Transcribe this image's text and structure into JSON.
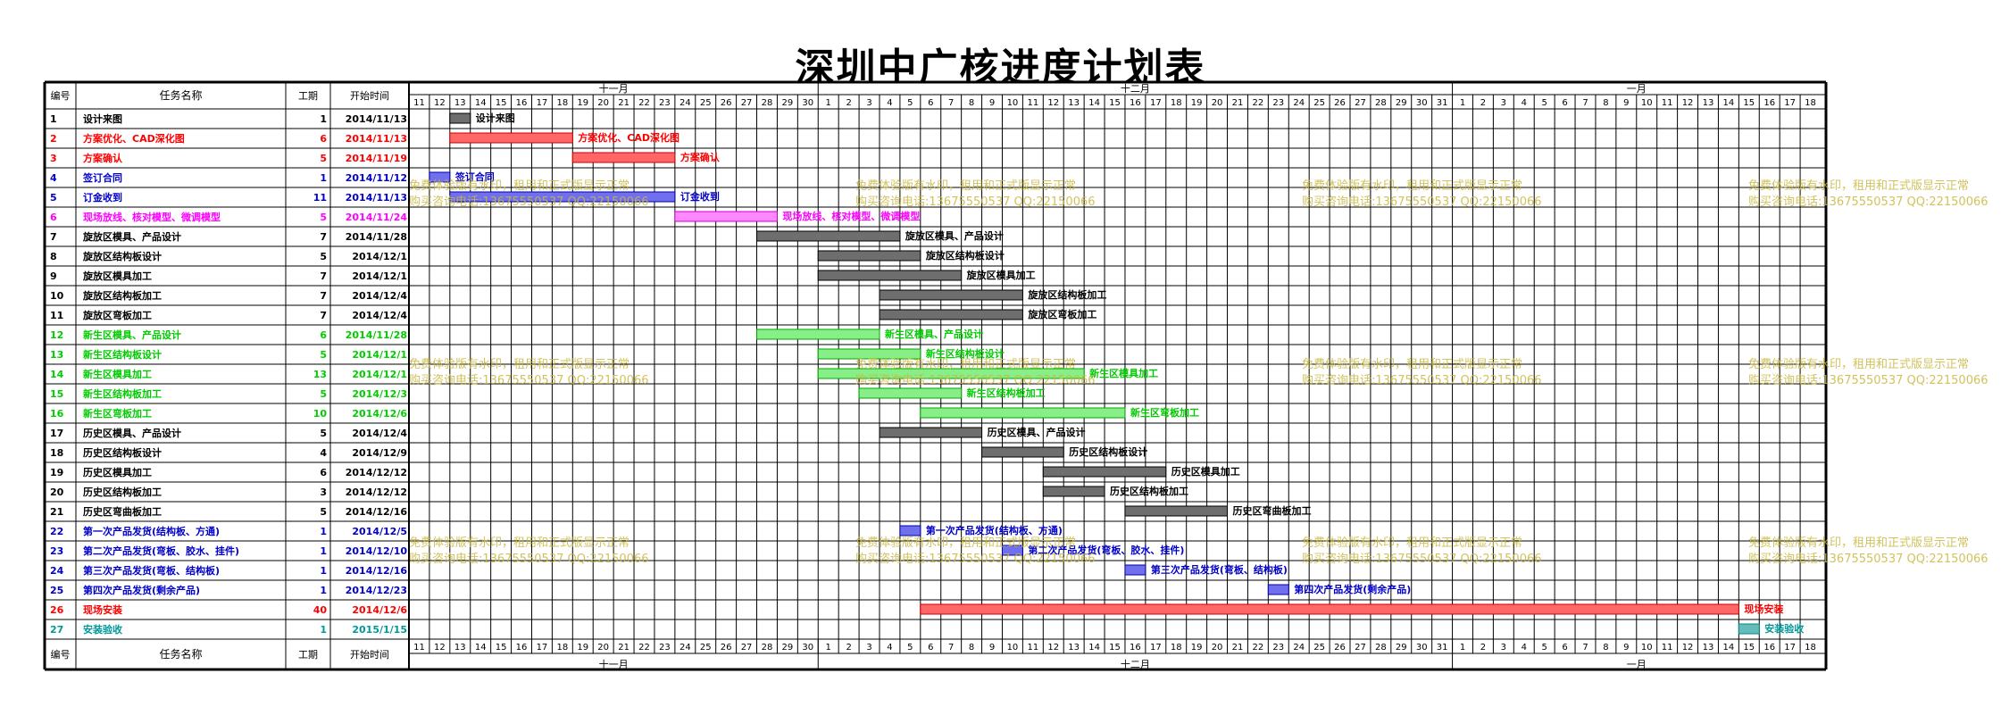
{
  "page": {
    "title": "深圳中广核进度计划表"
  },
  "table": {
    "headers": {
      "no": "编号",
      "name": "任务名称",
      "duration": "工期",
      "start": "开始时间"
    }
  },
  "timeline": {
    "months": [
      "十一月",
      "十二月",
      "一月"
    ],
    "days": [
      11,
      12,
      13,
      14,
      15,
      16,
      17,
      18,
      19,
      20,
      21,
      22,
      23,
      24,
      25,
      26,
      27,
      28,
      29,
      30,
      1,
      2,
      3,
      4,
      5,
      6,
      7,
      8,
      9,
      10,
      11,
      12,
      13,
      14,
      15,
      16,
      17,
      18,
      19,
      20,
      21,
      22,
      23,
      24,
      25,
      26,
      27,
      28,
      29,
      30,
      31,
      1,
      2,
      3,
      4,
      5,
      6,
      7,
      8,
      9,
      10,
      11,
      12,
      13,
      14,
      15,
      16,
      17,
      18
    ]
  },
  "colors": {
    "black": "#000000",
    "red": "#ff0000",
    "blue": "#0000cc",
    "magenta": "#ff00ff",
    "green": "#00cc00",
    "teal": "#009999"
  },
  "watermark": {
    "line1": "免费体验版有水印，租用和正式版显示正常",
    "line2": "购买咨询电话:13675550537 QQ:22150066"
  },
  "chart_data": {
    "type": "gantt",
    "title": "深圳中广核进度计划表",
    "x_range": [
      "2014-11-11",
      "2015-01-18"
    ],
    "tasks": [
      {
        "no": "1",
        "name": "设计来图",
        "duration": "1",
        "start": "2014/11/13",
        "start_date": "2014-11-13",
        "color": "black"
      },
      {
        "no": "2",
        "name": "方案优化、CAD深化图",
        "duration": "6",
        "start": "2014/11/13",
        "start_date": "2014-11-13",
        "color": "red"
      },
      {
        "no": "3",
        "name": "方案确认",
        "duration": "5",
        "start": "2014/11/19",
        "start_date": "2014-11-19",
        "color": "red"
      },
      {
        "no": "4",
        "name": "签订合同",
        "duration": "1",
        "start": "2014/11/12",
        "start_date": "2014-11-12",
        "color": "blue"
      },
      {
        "no": "5",
        "name": "订金收到",
        "duration": "11",
        "start": "2014/11/13",
        "start_date": "2014-11-13",
        "color": "blue"
      },
      {
        "no": "6",
        "name": "现场放线、核对模型、微调模型",
        "duration": "5",
        "start": "2014/11/24",
        "start_date": "2014-11-24",
        "color": "magenta"
      },
      {
        "no": "7",
        "name": "旋放区模具、产品设计",
        "duration": "7",
        "start": "2014/11/28",
        "start_date": "2014-11-28",
        "color": "black"
      },
      {
        "no": "8",
        "name": "旋放区结构板设计",
        "duration": "5",
        "start": "2014/12/1",
        "start_date": "2014-12-01",
        "color": "black"
      },
      {
        "no": "9",
        "name": "旋放区模具加工",
        "duration": "7",
        "start": "2014/12/1",
        "start_date": "2014-12-01",
        "color": "black"
      },
      {
        "no": "10",
        "name": "旋放区结构板加工",
        "duration": "7",
        "start": "2014/12/4",
        "start_date": "2014-12-04",
        "color": "black"
      },
      {
        "no": "11",
        "name": "旋放区弯板加工",
        "duration": "7",
        "start": "2014/12/4",
        "start_date": "2014-12-04",
        "color": "black"
      },
      {
        "no": "12",
        "name": "新生区模具、产品设计",
        "duration": "6",
        "start": "2014/11/28",
        "start_date": "2014-11-28",
        "color": "green"
      },
      {
        "no": "13",
        "name": "新生区结构板设计",
        "duration": "5",
        "start": "2014/12/1",
        "start_date": "2014-12-01",
        "color": "green"
      },
      {
        "no": "14",
        "name": "新生区模具加工",
        "duration": "13",
        "start": "2014/12/1",
        "start_date": "2014-12-01",
        "color": "green"
      },
      {
        "no": "15",
        "name": "新生区结构板加工",
        "duration": "5",
        "start": "2014/12/3",
        "start_date": "2014-12-03",
        "color": "green"
      },
      {
        "no": "16",
        "name": "新生区弯板加工",
        "duration": "10",
        "start": "2014/12/6",
        "start_date": "2014-12-06",
        "color": "green"
      },
      {
        "no": "17",
        "name": "历史区模具、产品设计",
        "duration": "5",
        "start": "2014/12/4",
        "start_date": "2014-12-04",
        "color": "black"
      },
      {
        "no": "18",
        "name": "历史区结构板设计",
        "duration": "4",
        "start": "2014/12/9",
        "start_date": "2014-12-09",
        "color": "black"
      },
      {
        "no": "19",
        "name": "历史区模具加工",
        "duration": "6",
        "start": "2014/12/12",
        "start_date": "2014-12-12",
        "color": "black"
      },
      {
        "no": "20",
        "name": "历史区结构板加工",
        "duration": "3",
        "start": "2014/12/12",
        "start_date": "2014-12-12",
        "color": "black"
      },
      {
        "no": "21",
        "name": "历史区弯曲板加工",
        "duration": "5",
        "start": "2014/12/16",
        "start_date": "2014-12-16",
        "color": "black"
      },
      {
        "no": "22",
        "name": "第一次产品发货(结构板、方通)",
        "duration": "1",
        "start": "2014/12/5",
        "start_date": "2014-12-05",
        "color": "blue"
      },
      {
        "no": "23",
        "name": "第二次产品发货(弯板、胶水、挂件)",
        "duration": "1",
        "start": "2014/12/10",
        "start_date": "2014-12-10",
        "color": "blue"
      },
      {
        "no": "24",
        "name": "第三次产品发货(弯板、结构板)",
        "duration": "1",
        "start": "2014/12/16",
        "start_date": "2014-12-16",
        "color": "blue"
      },
      {
        "no": "25",
        "name": "第四次产品发货(剩余产品)",
        "duration": "1",
        "start": "2014/12/23",
        "start_date": "2014-12-23",
        "color": "blue"
      },
      {
        "no": "26",
        "name": "现场安装",
        "duration": "40",
        "start": "2014/12/6",
        "start_date": "2014-12-06",
        "color": "red"
      },
      {
        "no": "27",
        "name": "安装验收",
        "duration": "1",
        "start": "2015/1/15",
        "start_date": "2015-01-15",
        "color": "teal"
      }
    ]
  }
}
